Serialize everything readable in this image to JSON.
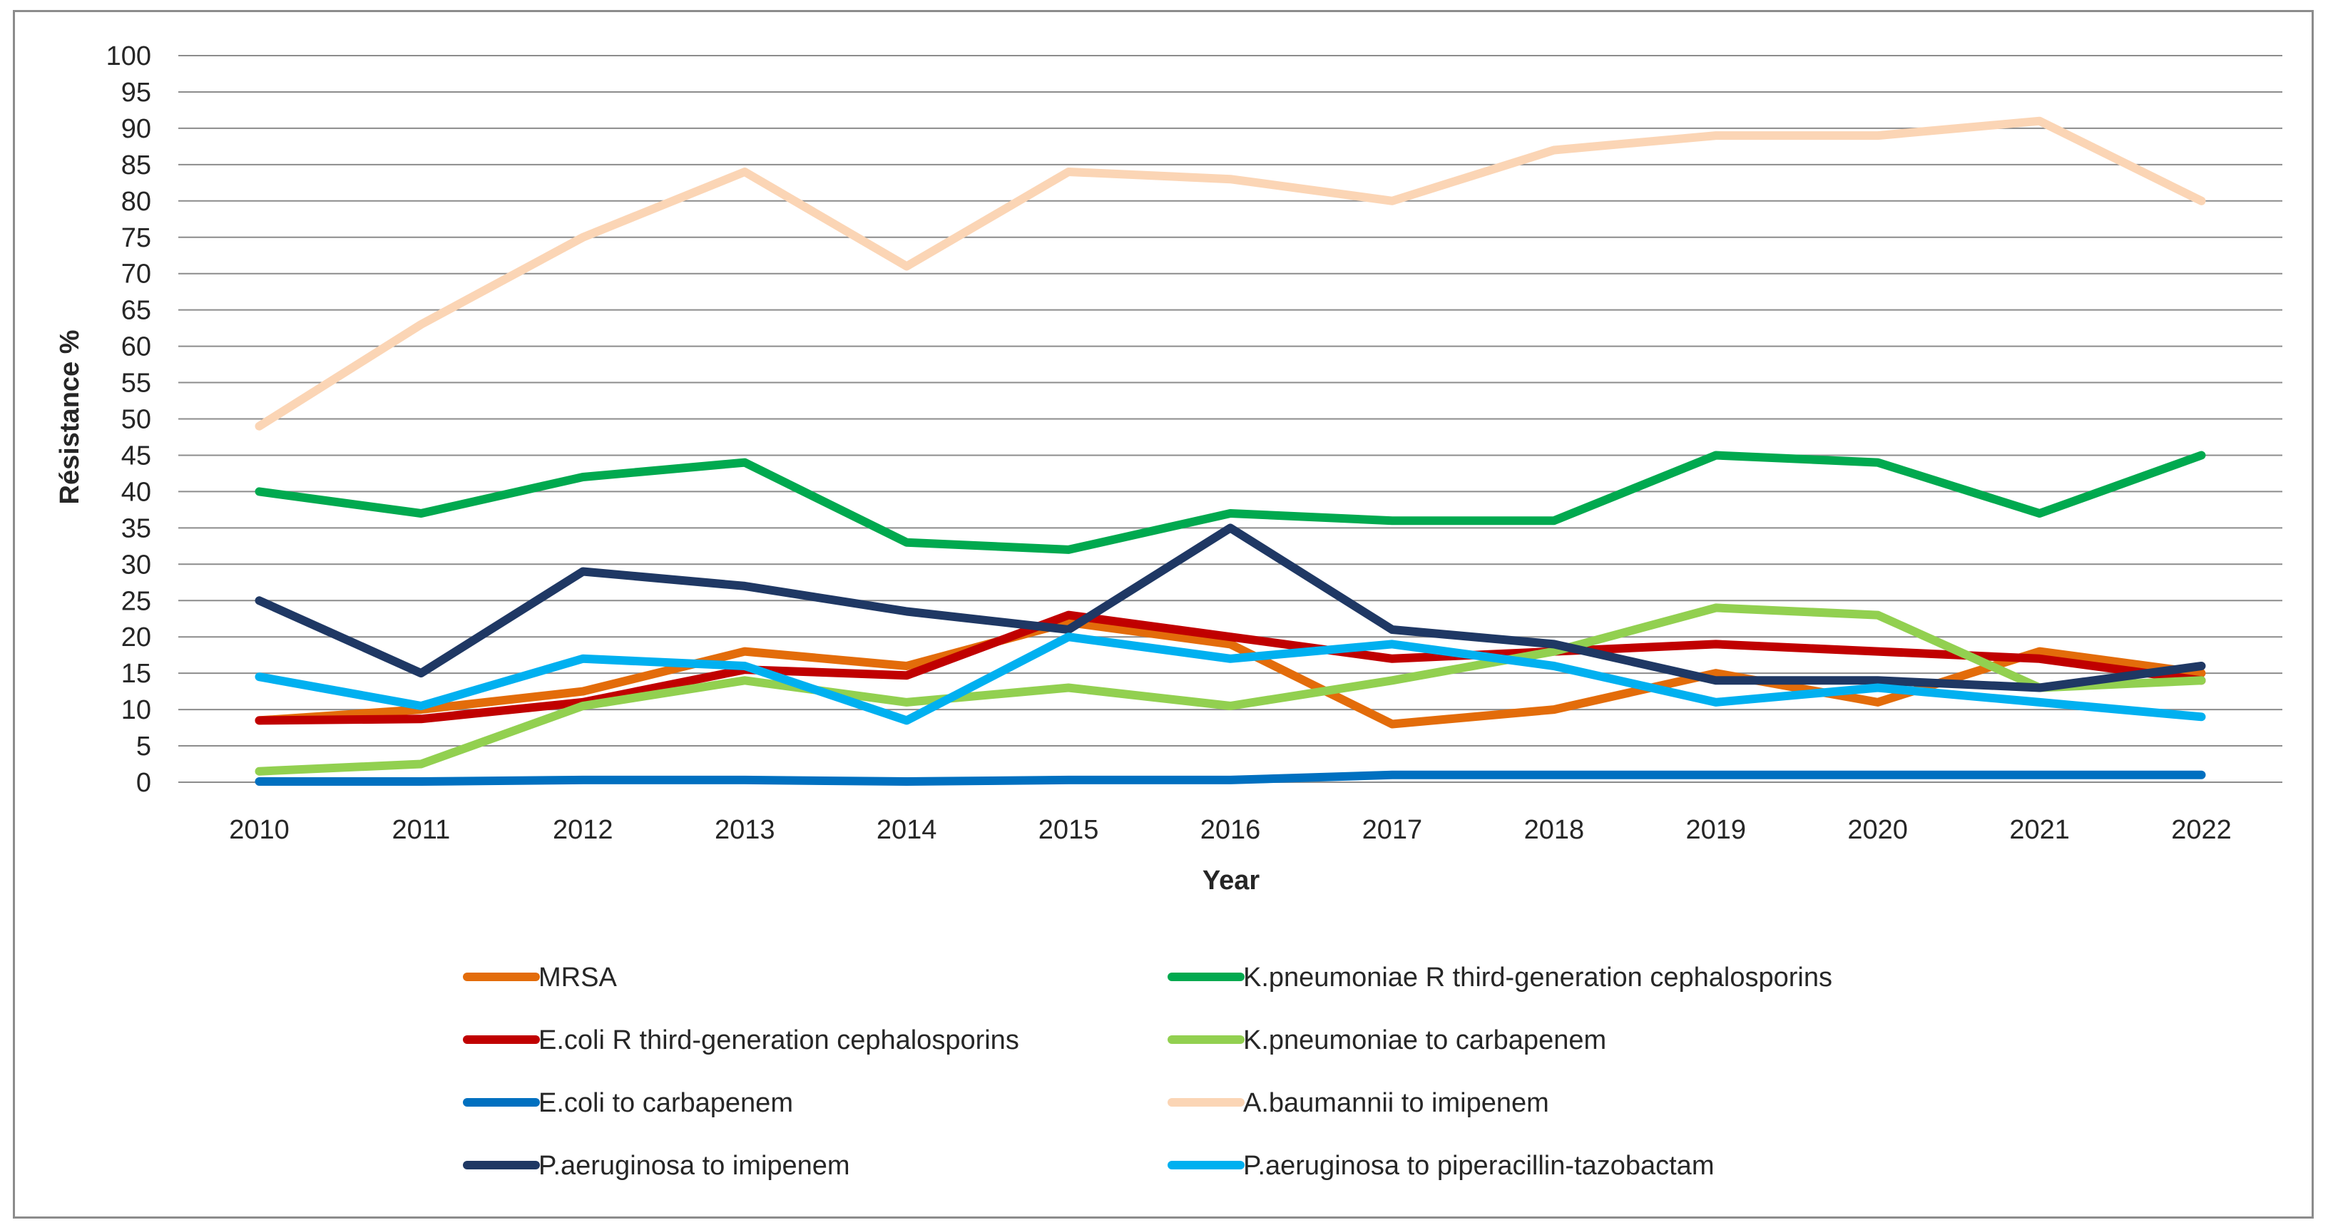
{
  "chart_data": {
    "type": "line",
    "title": "",
    "xlabel": "Year",
    "ylabel": "Résistance  %",
    "ylim": [
      0,
      100
    ],
    "ytick_step": 5,
    "grid": true,
    "legend_position": "bottom",
    "categories": [
      "2010",
      "2011",
      "2012",
      "2013",
      "2014",
      "2015",
      "2016",
      "2017",
      "2018",
      "2019",
      "2020",
      "2021",
      "2022"
    ],
    "series": [
      {
        "name": "MRSA",
        "color": "#e36c0a",
        "values": [
          8.5,
          10,
          12.5,
          18,
          16,
          22,
          19,
          8,
          10,
          15,
          11,
          18,
          15
        ]
      },
      {
        "name": "K.pneumoniae R third-generation cephalosporins",
        "color": "#00a94f",
        "values": [
          40,
          37,
          42,
          44,
          33,
          32,
          37,
          36,
          36,
          45,
          44,
          37,
          45
        ]
      },
      {
        "name": "E.coli R third-generation cephalosporins",
        "color": "#c00000",
        "values": [
          8.5,
          8.7,
          11,
          15.5,
          14.7,
          23,
          20,
          17,
          18,
          19,
          18,
          17,
          14
        ]
      },
      {
        "name": "K.pneumoniae to carbapenem",
        "color": "#92d050",
        "values": [
          1.5,
          2.5,
          10.5,
          14,
          11,
          13,
          10.5,
          14,
          18,
          24,
          23,
          13,
          14
        ]
      },
      {
        "name": "E.coli to carbapenem",
        "color": "#0070c0",
        "values": [
          0.1,
          0.1,
          0.3,
          0.3,
          0.1,
          0.3,
          0.3,
          1,
          1,
          1,
          1,
          1,
          1
        ]
      },
      {
        "name": "A.baumannii to imipenem",
        "color": "#fbd5b5",
        "values": [
          49,
          63,
          75,
          84,
          71,
          84,
          83,
          80,
          87,
          89,
          89,
          91,
          80
        ]
      },
      {
        "name": "P.aeruginosa to imipenem",
        "color": "#1f3864",
        "values": [
          25,
          15,
          29,
          27,
          23.5,
          21,
          35,
          21,
          19,
          14,
          14,
          13,
          16
        ]
      },
      {
        "name": "P.aeruginosa to piperacillin-tazobactam",
        "color": "#00b0f0",
        "values": [
          14.5,
          10.5,
          17,
          16,
          8.5,
          20,
          17,
          19,
          16,
          11,
          13,
          11,
          9
        ]
      }
    ]
  }
}
